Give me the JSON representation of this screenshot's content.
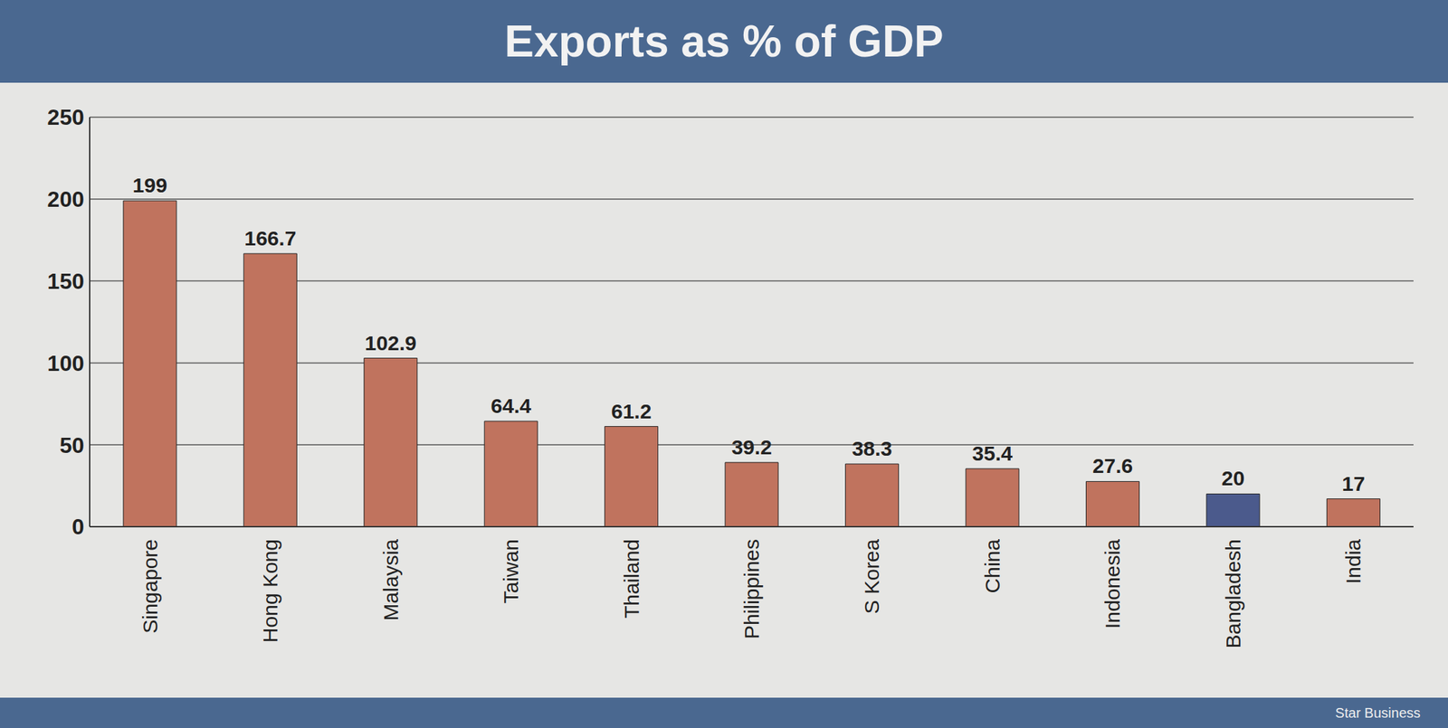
{
  "chart_data": {
    "type": "bar",
    "title": "Exports as % of GDP",
    "source": "Star Business",
    "categories": [
      "Singapore",
      "Hong Kong",
      "Malaysia",
      "Taiwan",
      "Thailand",
      "Philippines",
      "S Korea",
      "China",
      "Indonesia",
      "Bangladesh",
      "India"
    ],
    "values": [
      199,
      166.7,
      102.9,
      64.4,
      61.2,
      39.2,
      38.3,
      35.4,
      27.6,
      20,
      17
    ],
    "colors": [
      "#c0735e",
      "#c0735e",
      "#c0735e",
      "#c0735e",
      "#c0735e",
      "#c0735e",
      "#c0735e",
      "#c0735e",
      "#c0735e",
      "#4b5a8c",
      "#c0735e"
    ],
    "ylim": [
      0,
      250
    ],
    "yticks": [
      0,
      50,
      100,
      150,
      200,
      250
    ],
    "grid": true,
    "data_labels": true
  }
}
